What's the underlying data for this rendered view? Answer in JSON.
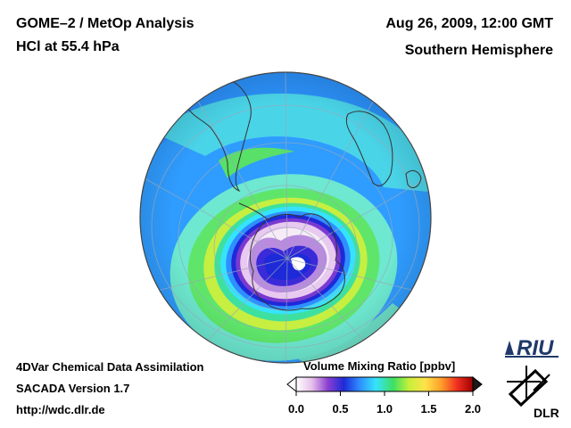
{
  "header": {
    "title": "GOME–2 / MetOp Analysis",
    "subtitle": "HCl at 55.4 hPa",
    "datetime": "Aug 26, 2009, 12:00 GMT",
    "region": "Southern Hemisphere"
  },
  "footer": {
    "line1": "4DVar Chemical Data Assimilation",
    "line2": "SACADA Version 1.7",
    "line3": "http://wdc.dlr.de"
  },
  "colorbar": {
    "title": "Volume Mixing Ratio [ppbv]",
    "ticks": [
      "0.0",
      "0.5",
      "1.0",
      "1.5",
      "2.0"
    ],
    "min": 0.0,
    "max": 2.0,
    "colors": [
      "#ffffff",
      "#e6bfea",
      "#8a3fd0",
      "#1e2ad8",
      "#2f8fff",
      "#35e3ff",
      "#3ee060",
      "#c8f03a",
      "#ffe24a",
      "#ffa02a",
      "#f03020",
      "#a00000"
    ]
  },
  "logos": {
    "riu": "RIU",
    "dlr": "DLR"
  }
}
